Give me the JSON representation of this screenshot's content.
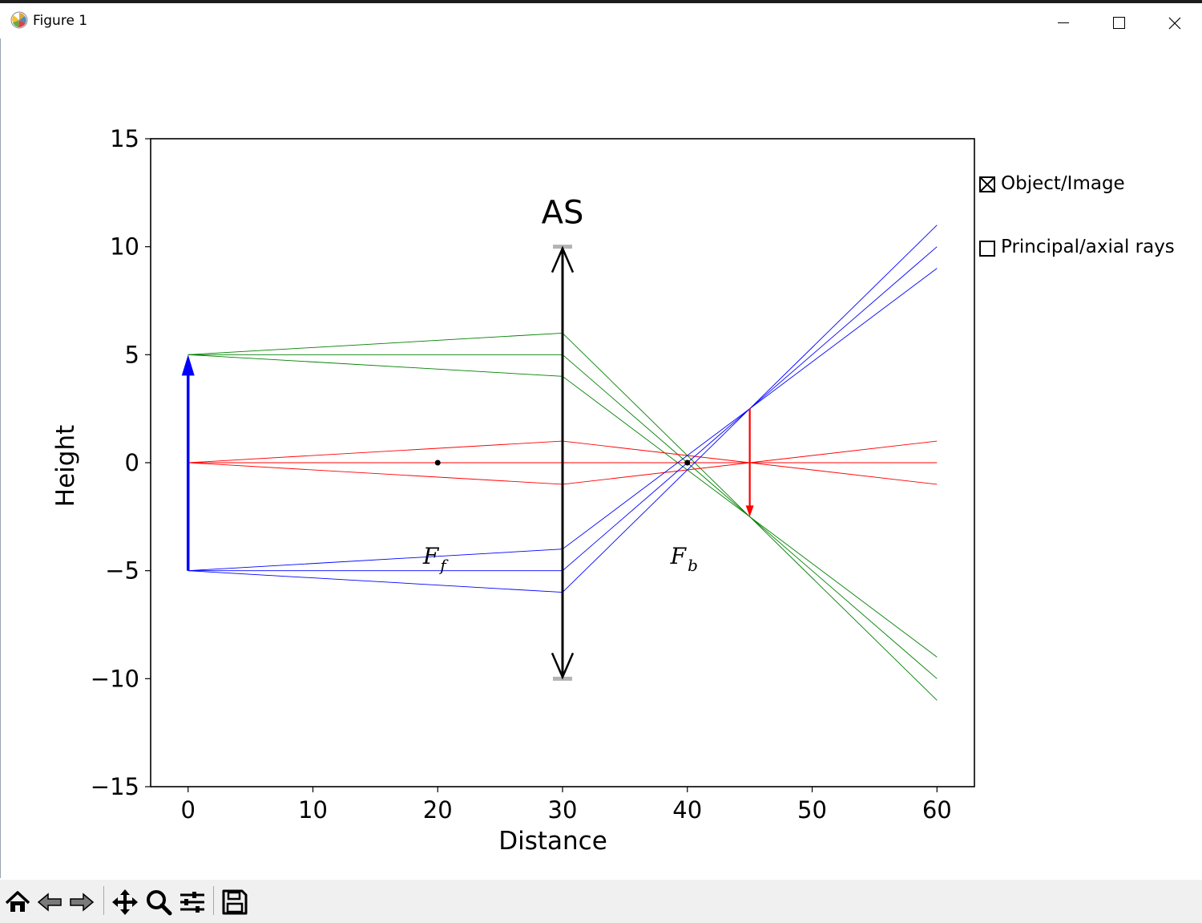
{
  "window": {
    "title": "Figure 1",
    "controls": [
      "minimize",
      "maximize",
      "close"
    ]
  },
  "checks": [
    {
      "label": "Object/Image",
      "checked": true
    },
    {
      "label": "Principal/axial rays",
      "checked": false
    }
  ],
  "toolbar": {
    "buttons": [
      "home-icon",
      "back-icon",
      "forward-icon",
      "pan-icon",
      "zoom-icon",
      "configure-subplots-icon",
      "save-icon"
    ]
  },
  "chart_data": {
    "type": "line",
    "xlabel": "Distance",
    "ylabel": "Height",
    "xlim": [
      -3,
      63
    ],
    "ylim": [
      -15,
      15
    ],
    "xticks": [
      0,
      10,
      20,
      30,
      40,
      50,
      60
    ],
    "yticks": [
      -15,
      -10,
      -5,
      0,
      5,
      10,
      15
    ],
    "xtick_labels": [
      "0",
      "10",
      "20",
      "30",
      "40",
      "50",
      "60"
    ],
    "ytick_labels": [
      "−15",
      "−10",
      "−5",
      "0",
      "5",
      "10",
      "15"
    ],
    "grid": false,
    "lens": {
      "x": 30,
      "y_min": -10,
      "y_max": 10,
      "label": "AS",
      "color": "#000000"
    },
    "object_arrow": {
      "x": 0,
      "from": -5,
      "to": 5,
      "color": "#0000ff"
    },
    "image_arrow": {
      "x": 45,
      "from": 2.5,
      "to": -2.5,
      "color": "#ff0000"
    },
    "focal_points": [
      {
        "x": 20,
        "y": 0,
        "label": "F",
        "sub": "f",
        "label_x": 20,
        "label_y": -4.6
      },
      {
        "x": 40,
        "y": 0,
        "label": "F",
        "sub": "b",
        "label_x": 40,
        "label_y": -4.6
      }
    ],
    "rays": [
      {
        "color": "#008000",
        "points": [
          [
            0,
            5
          ],
          [
            30,
            6
          ],
          [
            60,
            -11
          ]
        ]
      },
      {
        "color": "#008000",
        "points": [
          [
            0,
            5
          ],
          [
            30,
            5
          ],
          [
            60,
            -10
          ]
        ]
      },
      {
        "color": "#008000",
        "points": [
          [
            0,
            5
          ],
          [
            30,
            4
          ],
          [
            60,
            -9
          ]
        ]
      },
      {
        "color": "#ff0000",
        "points": [
          [
            0,
            0
          ],
          [
            30,
            1
          ],
          [
            60,
            -1
          ]
        ]
      },
      {
        "color": "#ff0000",
        "points": [
          [
            0,
            0
          ],
          [
            30,
            0
          ],
          [
            60,
            0
          ]
        ]
      },
      {
        "color": "#ff0000",
        "points": [
          [
            0,
            0
          ],
          [
            30,
            -1
          ],
          [
            60,
            1
          ]
        ]
      },
      {
        "color": "#0000ff",
        "points": [
          [
            0,
            -5
          ],
          [
            30,
            -4
          ],
          [
            60,
            9
          ]
        ]
      },
      {
        "color": "#0000ff",
        "points": [
          [
            0,
            -5
          ],
          [
            30,
            -5
          ],
          [
            60,
            10
          ]
        ]
      },
      {
        "color": "#0000ff",
        "points": [
          [
            0,
            -5
          ],
          [
            30,
            -6
          ],
          [
            60,
            11
          ]
        ]
      }
    ]
  }
}
